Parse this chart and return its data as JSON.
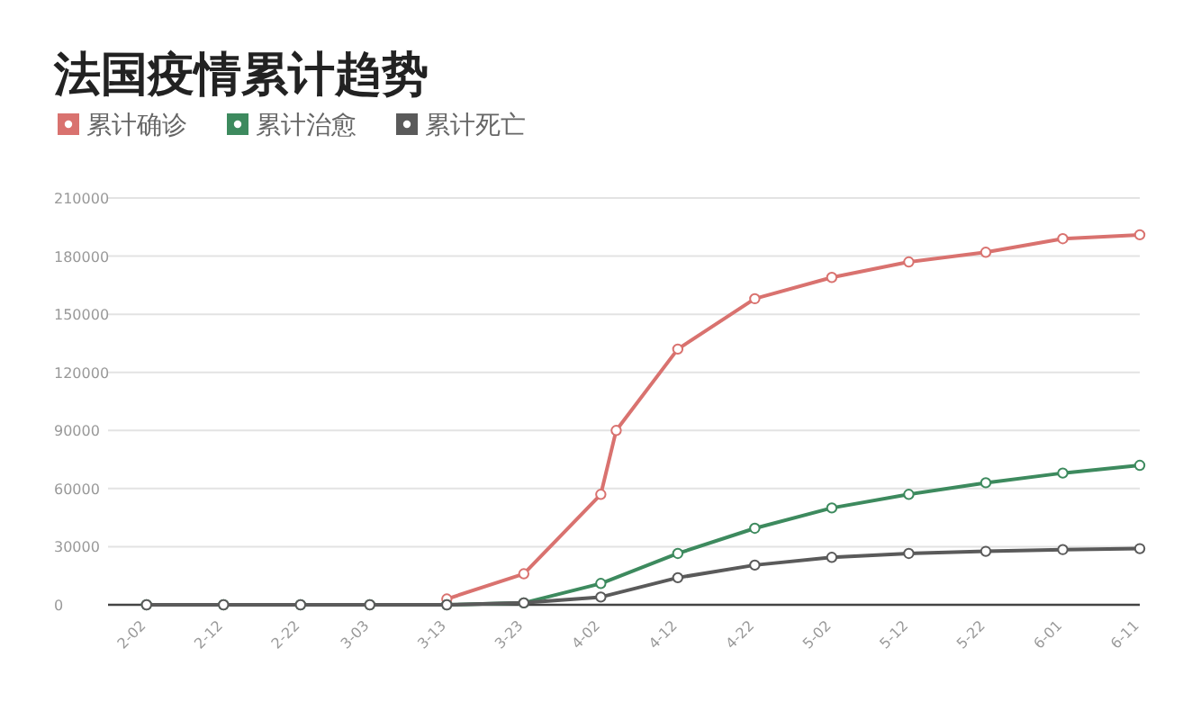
{
  "chart_data": {
    "type": "line",
    "title": "法国疫情累计趋势",
    "x": [
      "--02-02",
      "--02-12",
      "--02-22",
      "--03-03",
      "--03-13",
      "--03-23",
      "--04-02",
      "--04-04",
      "--04-12",
      "--04-22",
      "--05-02",
      "--05-12",
      "--05-22",
      "--06-01",
      "--06-11"
    ],
    "series": [
      {
        "name": "累计确诊",
        "color": "#d9726f",
        "values": [
          null,
          null,
          null,
          null,
          3000,
          16000,
          57000,
          90000,
          132000,
          158000,
          169000,
          177000,
          182000,
          189000,
          191000
        ]
      },
      {
        "name": "累计治愈",
        "color": "#3d8a5e",
        "values": [
          0,
          0,
          0,
          0,
          0,
          1000,
          11000,
          null,
          26500,
          39500,
          50000,
          57000,
          63000,
          68000,
          72000
        ]
      },
      {
        "name": "累计死亡",
        "color": "#5a5a5a",
        "values": [
          0,
          0,
          0,
          0,
          0,
          1000,
          4000,
          null,
          14000,
          20500,
          24500,
          26500,
          27600,
          28500,
          29000
        ]
      }
    ],
    "xlim": [
      "--01-28",
      "--06-11"
    ],
    "xticks": [
      {
        "value": "--02-02",
        "label": "2-02"
      },
      {
        "value": "--02-12",
        "label": "2-12"
      },
      {
        "value": "--02-22",
        "label": "2-22"
      },
      {
        "value": "--03-03",
        "label": "3-03"
      },
      {
        "value": "--03-13",
        "label": "3-13"
      },
      {
        "value": "--03-23",
        "label": "3-23"
      },
      {
        "value": "--04-02",
        "label": "4-02"
      },
      {
        "value": "--04-12",
        "label": "4-12"
      },
      {
        "value": "--04-22",
        "label": "4-22"
      },
      {
        "value": "--05-02",
        "label": "5-02"
      },
      {
        "value": "--05-12",
        "label": "5-12"
      },
      {
        "value": "--05-22",
        "label": "5-22"
      },
      {
        "value": "--06-01",
        "label": "6-01"
      },
      {
        "value": "--06-11",
        "label": "6-11"
      }
    ],
    "ylim": [
      0,
      210000
    ],
    "yticks": [
      0,
      30000,
      60000,
      90000,
      120000,
      150000,
      180000,
      210000
    ],
    "grid": "y",
    "legend": "top",
    "marker": "circle",
    "line_style": "solid"
  }
}
